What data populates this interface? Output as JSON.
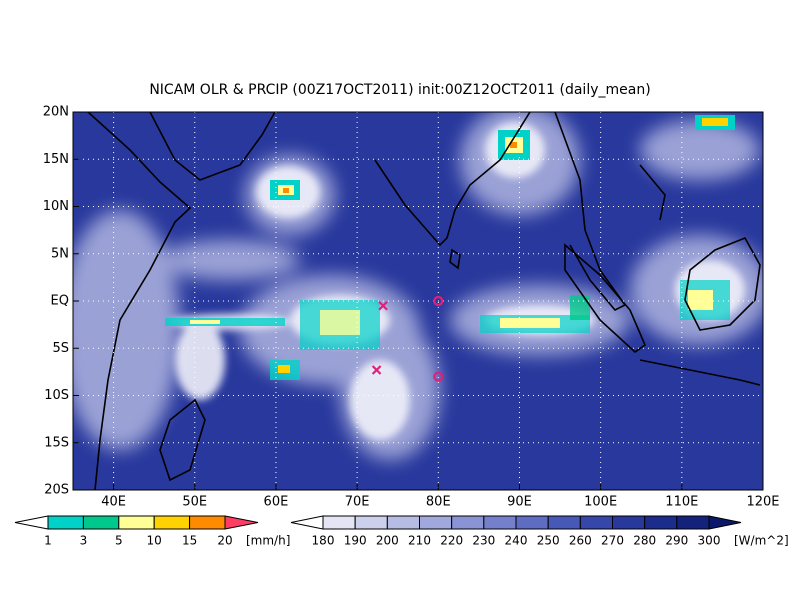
{
  "title": "NICAM OLR & PRCIP (00Z17OCT2011) init:00Z12OCT2011 (daily_mean)",
  "map": {
    "lon_range": [
      35,
      120
    ],
    "lat_range": [
      -20,
      20
    ],
    "lon_ticks": [
      {
        "value": 40,
        "label": "40E"
      },
      {
        "value": 50,
        "label": "50E"
      },
      {
        "value": 60,
        "label": "60E"
      },
      {
        "value": 70,
        "label": "70E"
      },
      {
        "value": 80,
        "label": "80E"
      },
      {
        "value": 90,
        "label": "90E"
      },
      {
        "value": 100,
        "label": "100E"
      },
      {
        "value": 110,
        "label": "110E"
      },
      {
        "value": 120,
        "label": "120E"
      }
    ],
    "lat_ticks": [
      {
        "value": 20,
        "label": "20N"
      },
      {
        "value": 15,
        "label": "15N"
      },
      {
        "value": 10,
        "label": "10N"
      },
      {
        "value": 5,
        "label": "5N"
      },
      {
        "value": 0,
        "label": "EQ"
      },
      {
        "value": -5,
        "label": "5S"
      },
      {
        "value": -10,
        "label": "10S"
      },
      {
        "value": -15,
        "label": "15S"
      },
      {
        "value": -20,
        "label": "20S"
      }
    ],
    "markers": [
      {
        "lon": 73.2,
        "lat": -0.5,
        "symbol": "x"
      },
      {
        "lon": 72.4,
        "lat": -7.3,
        "symbol": "x"
      },
      {
        "lon": 80,
        "lat": 0,
        "symbol": "o"
      },
      {
        "lon": 80,
        "lat": -8,
        "symbol": "o"
      }
    ]
  },
  "precip_legend": {
    "levels": [
      1,
      3,
      5,
      10,
      15,
      20
    ],
    "colors": [
      "#ffffff",
      "#00d2c8",
      "#00c88c",
      "#ffff96",
      "#ffd200",
      "#ff8c00",
      "#ff3c64"
    ],
    "unit": "[mm/h]"
  },
  "olr_legend": {
    "levels": [
      180,
      190,
      200,
      210,
      220,
      230,
      240,
      250,
      260,
      270,
      280,
      290,
      300
    ],
    "colors": [
      "#ffffff",
      "#e4e4f4",
      "#cdd0ec",
      "#b7bce4",
      "#a0a8dc",
      "#8a94d4",
      "#7480cc",
      "#5e6cc2",
      "#4858b6",
      "#3646aa",
      "#28389c",
      "#1c2c8c",
      "#14227c",
      "#0c186a"
    ],
    "unit": "[W/m^2]"
  }
}
